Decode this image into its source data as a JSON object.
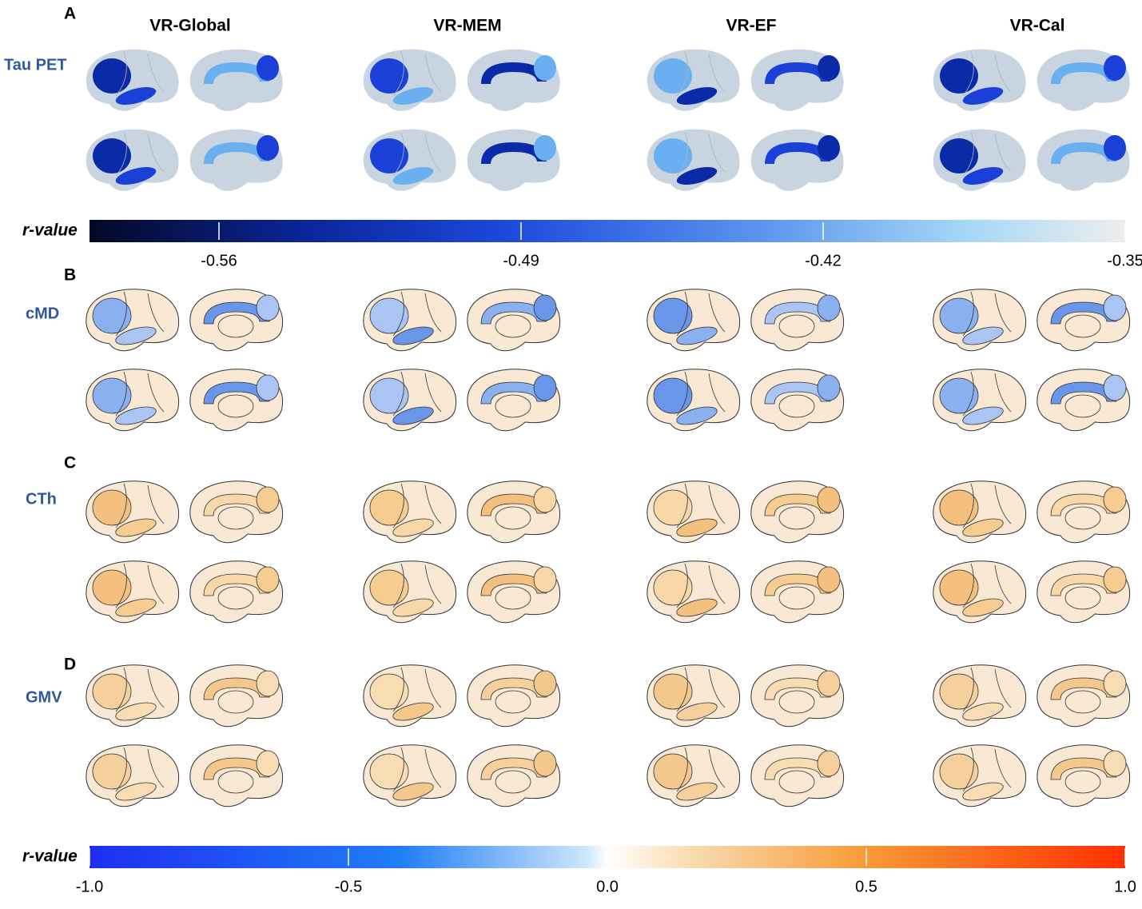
{
  "column_titles": [
    "VR-Global",
    "VR-MEM",
    "VR-EF",
    "VR-Cal"
  ],
  "panels": [
    {
      "label": "A",
      "row_label": "Tau PET"
    },
    {
      "label": "B",
      "row_label": "cMD"
    },
    {
      "label": "C",
      "row_label": "CTh"
    },
    {
      "label": "D",
      "row_label": "GMV"
    }
  ],
  "colorbars": [
    {
      "label": "r-value",
      "lim": [
        -0.59,
        -0.35
      ],
      "ticks": [
        -0.56,
        -0.49,
        -0.42,
        -0.35
      ]
    },
    {
      "label": "r-value",
      "lim": [
        -1,
        1
      ],
      "ticks": [
        {
          "value": -1,
          "label": "-1.0"
        },
        -0.5,
        {
          "value": 0,
          "label": "0.0"
        },
        0.5,
        {
          "value": 1,
          "label": "1.0"
        }
      ]
    }
  ]
}
